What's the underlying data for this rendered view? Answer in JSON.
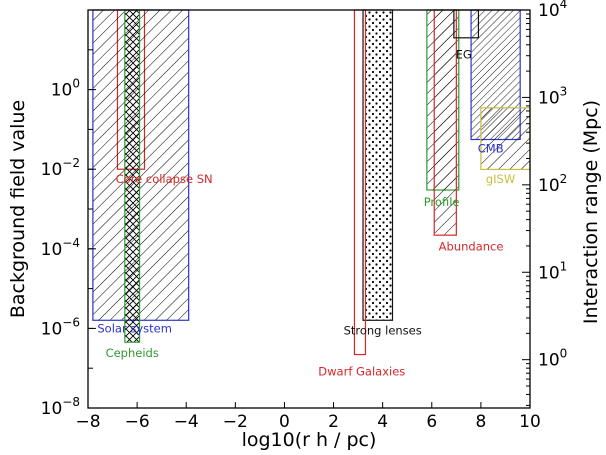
{
  "chart_data": {
    "type": "bar",
    "xlabel": "log10(r h / pc)",
    "ylabel_left": "Background field value",
    "ylabel_right": "Interaction range (Mpc)",
    "xlim": [
      -8,
      10
    ],
    "ylim_left": [
      1e-08,
      100.0
    ],
    "yscale_left": "log",
    "ylim_right_mpc": [
      0.28,
      10000
    ],
    "yscale_right": "log",
    "x_ticks": [
      -8,
      -6,
      -4,
      -2,
      0,
      2,
      4,
      6,
      8,
      10
    ],
    "left_ticks": [
      {
        "value": 1e-08,
        "exp": "−8"
      },
      {
        "value": 1e-06,
        "exp": "−6"
      },
      {
        "value": 0.0001,
        "exp": "−4"
      },
      {
        "value": 0.01,
        "exp": "−2"
      },
      {
        "value": 1,
        "exp": "0"
      }
    ],
    "right_ticks": [
      {
        "value": 1,
        "exp": "0"
      },
      {
        "value": 10,
        "exp": "1"
      },
      {
        "value": 100,
        "exp": "2"
      },
      {
        "value": 1000,
        "exp": "3"
      },
      {
        "value": 10000,
        "exp": "4"
      }
    ],
    "constraints": [
      {
        "name": "Core collapse SN",
        "x": [
          -6.8,
          -5.7
        ],
        "y_field": [
          0.01,
          100
        ],
        "color": "#d62728",
        "hatch": "none",
        "label_x": -4.9,
        "label_field": 0.0045
      },
      {
        "name": "Solar system",
        "x": [
          -7.8,
          -3.9
        ],
        "y_field": [
          1.6e-06,
          100
        ],
        "color": "#2c34c8",
        "hatch": "diag",
        "label_x": -6.1,
        "label_field": 8e-07
      },
      {
        "name": "Cepheids",
        "x": [
          -6.5,
          -5.9
        ],
        "y_field": [
          4.5e-07,
          100
        ],
        "color": "#2e9a2e",
        "hatch": "cross",
        "label_x": -6.2,
        "label_field": 1.9e-07
      },
      {
        "name": "Strong lenses",
        "x": [
          3.2,
          4.4
        ],
        "y_field": [
          1.6e-06,
          100
        ],
        "color": "#111111",
        "hatch": "dots",
        "label_x": 4.0,
        "label_field": 7e-07
      },
      {
        "name": "Dwarf Galaxies",
        "x": [
          2.85,
          3.3
        ],
        "y_field": [
          2.2e-07,
          100
        ],
        "color": "#d62728",
        "hatch": "none",
        "label_x": 3.15,
        "label_field": 6.5e-08
      },
      {
        "name": "Profile",
        "x": [
          5.8,
          7.1
        ],
        "y_field": [
          0.003,
          100
        ],
        "color": "#2e9a2e",
        "hatch": "diag",
        "label_x": 6.4,
        "label_field": 0.0012
      },
      {
        "name": "Abundance",
        "x": [
          6.1,
          7.0
        ],
        "y_field": [
          0.00022,
          100
        ],
        "color": "#d62728",
        "hatch": "diag",
        "label_x": 7.6,
        "label_field": 9e-05
      },
      {
        "name": "EG",
        "x": [
          6.9,
          7.9
        ],
        "y_field": [
          20,
          100
        ],
        "color": "#111111",
        "hatch": "none",
        "label_x": 7.3,
        "label_field": 6
      },
      {
        "name": "CMB",
        "x": [
          7.6,
          9.6
        ],
        "y_field_right": [
          330,
          10000
        ],
        "color": "#2c34c8",
        "hatch": "dense",
        "label_x": 8.4,
        "label_right": 235
      },
      {
        "name": "gISW",
        "x": [
          8.0,
          10.0
        ],
        "y_field_right": [
          150,
          760
        ],
        "color": "#c9bd3a",
        "hatch": "diag",
        "label_x": 8.8,
        "label_right": 105
      }
    ]
  }
}
